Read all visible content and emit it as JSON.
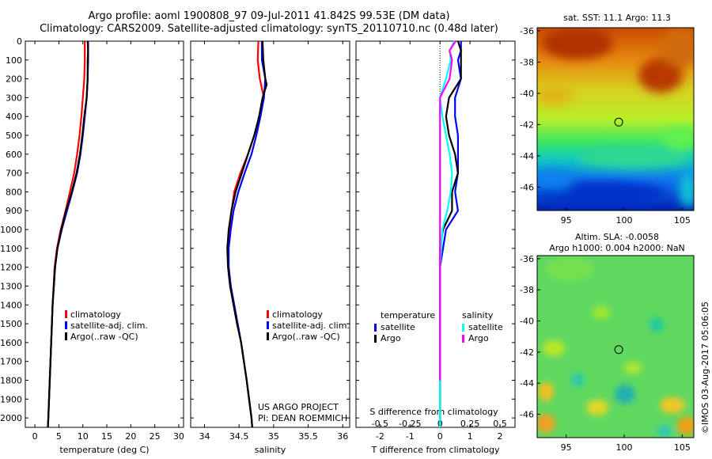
{
  "header": {
    "line1": "Argo profile: aoml 1900808_97 09-Jul-2011 41.842S 99.53E (DM data)",
    "line2": "Climatology: CARS2009. Satellite-adjusted climatology: synTS_20110710.nc (0.48d later)"
  },
  "footer": {
    "project": "US ARGO PROJECT",
    "pi": "PI: DEAN ROEMMICH"
  },
  "stamp": "©IMOS 03-Aug-2017 05:06:05",
  "colors": {
    "climatology": "#ff0000",
    "satellite": "#0000ff",
    "argo": "#000000",
    "sal_satellite": "#00ffff",
    "sal_argo": "#ff00ff"
  },
  "chart_data": [
    {
      "type": "line",
      "id": "temperature",
      "xlabel": "temperature (deg C)",
      "ylabel": "",
      "xlim": [
        -2,
        31
      ],
      "ylim": [
        2050,
        0
      ],
      "xticks": [
        "0",
        "5",
        "10",
        "15",
        "20",
        "25",
        "30"
      ],
      "yticks": [
        "0",
        "100",
        "200",
        "300",
        "400",
        "500",
        "600",
        "700",
        "800",
        "900",
        "1000",
        "1100",
        "1200",
        "1300",
        "1400",
        "1500",
        "1600",
        "1700",
        "1800",
        "1900",
        "2000"
      ],
      "legend": [
        "climatology",
        "satellite-adj. clim.",
        "Argo(..raw -QC)"
      ],
      "series": [
        {
          "name": "climatology",
          "color": "#ff0000",
          "depth": [
            0,
            100,
            200,
            300,
            400,
            500,
            600,
            700,
            800,
            900,
            1000,
            1100,
            1200,
            1400,
            1600,
            1800,
            2000,
            2050
          ],
          "values": [
            10.4,
            10.4,
            10.3,
            10.0,
            9.7,
            9.3,
            8.8,
            8.2,
            7.3,
            6.4,
            5.4,
            4.6,
            4.1,
            3.7,
            3.4,
            3.1,
            2.8,
            2.7
          ]
        },
        {
          "name": "satellite-adj. clim.",
          "color": "#0000ff",
          "depth": [
            0,
            100,
            200,
            300,
            400,
            500,
            600,
            700,
            800,
            900,
            1000,
            1100,
            1200,
            1400,
            1600,
            1800,
            2000,
            2050
          ],
          "values": [
            11.1,
            11.1,
            11.0,
            10.8,
            10.4,
            10.0,
            9.5,
            8.8,
            7.8,
            6.7,
            5.6,
            4.7,
            4.2,
            3.7,
            3.4,
            3.1,
            2.8,
            2.7
          ]
        },
        {
          "name": "Argo(..raw -QC)",
          "color": "#000000",
          "depth": [
            0,
            50,
            100,
            200,
            300,
            400,
            500,
            600,
            700,
            800,
            900,
            1000,
            1100,
            1200,
            1400,
            1600,
            1800,
            2000,
            2050
          ],
          "values": [
            11.0,
            11.1,
            11.0,
            11.0,
            10.8,
            10.3,
            9.9,
            9.4,
            8.7,
            7.7,
            6.5,
            5.5,
            4.7,
            4.2,
            3.7,
            3.4,
            3.1,
            2.8,
            2.7
          ]
        }
      ]
    },
    {
      "type": "line",
      "id": "salinity",
      "xlabel": "salinity",
      "ylabel": "",
      "xlim": [
        33.8,
        36.1
      ],
      "ylim": [
        2050,
        0
      ],
      "xticks": [
        "34",
        "34.5",
        "35",
        "35.5",
        "36"
      ],
      "legend": [
        "climatology",
        "satellite-adj. clim.",
        "Argo(..raw -QC)"
      ],
      "series": [
        {
          "name": "climatology",
          "color": "#ff0000",
          "depth": [
            0,
            100,
            200,
            300,
            400,
            500,
            600,
            700,
            800,
            900,
            1000,
            1100,
            1200,
            1300,
            1400,
            1500,
            1600,
            1800,
            2000,
            2050
          ],
          "values": [
            34.78,
            34.77,
            34.8,
            34.86,
            34.8,
            34.72,
            34.63,
            34.52,
            34.43,
            34.39,
            34.36,
            34.34,
            34.35,
            34.38,
            34.43,
            34.48,
            34.53,
            34.61,
            34.68,
            34.69
          ]
        },
        {
          "name": "satellite-adj. clim.",
          "color": "#0000ff",
          "depth": [
            0,
            100,
            200,
            300,
            400,
            500,
            600,
            700,
            800,
            900,
            1000,
            1100,
            1200,
            1300,
            1400,
            1500,
            1600,
            1800,
            2000,
            2050
          ],
          "values": [
            34.83,
            34.83,
            34.88,
            34.86,
            34.81,
            34.75,
            34.68,
            34.58,
            34.49,
            34.42,
            34.38,
            34.35,
            34.35,
            34.38,
            34.43,
            34.48,
            34.53,
            34.61,
            34.68,
            34.69
          ]
        },
        {
          "name": "Argo(..raw -QC)",
          "color": "#000000",
          "depth": [
            0,
            100,
            200,
            230,
            300,
            400,
            500,
            600,
            700,
            800,
            900,
            1000,
            1100,
            1200,
            1300,
            1400,
            1500,
            1600,
            1800,
            2000,
            2050
          ],
          "values": [
            34.84,
            34.85,
            34.88,
            34.9,
            34.84,
            34.79,
            34.72,
            34.63,
            34.54,
            34.45,
            34.39,
            34.35,
            34.33,
            34.34,
            34.37,
            34.42,
            34.47,
            34.53,
            34.61,
            34.68,
            34.69
          ]
        }
      ]
    },
    {
      "type": "line",
      "id": "differences",
      "xlabel": "T difference from climatology",
      "ylabel": "",
      "second_xlabel": "S difference from climatology",
      "xlim": [
        -2.8,
        2.5
      ],
      "ylim": [
        2050,
        0
      ],
      "xticks": [
        "-2",
        "-1",
        "0",
        "1",
        "2"
      ],
      "second_xticks": [
        "-0.5",
        "-0.25",
        "0",
        "0.25",
        "0.5"
      ],
      "legend_groups": [
        {
          "title": "temperature",
          "items": [
            "satellite",
            "Argo"
          ]
        },
        {
          "title": "salinity",
          "items": [
            "satellite",
            "Argo"
          ]
        }
      ],
      "series": [
        {
          "name": "satellite",
          "group": "temperature",
          "color": "#0000ff",
          "depth": [
            0,
            50,
            100,
            200,
            300,
            400,
            500,
            600,
            700,
            800,
            900,
            1000,
            1100,
            1200,
            1400,
            1600,
            1800,
            2000,
            2050
          ],
          "values": [
            0.7,
            0.7,
            0.6,
            0.7,
            0.5,
            0.5,
            0.6,
            0.6,
            0.6,
            0.5,
            0.6,
            0.2,
            0.1,
            0.0,
            0.0,
            0.0,
            0.0,
            0.0,
            0.0
          ]
        },
        {
          "name": "Argo",
          "group": "temperature",
          "color": "#000000",
          "depth": [
            0,
            50,
            100,
            200,
            300,
            400,
            500,
            600,
            700,
            800,
            900,
            1000,
            1100,
            1200,
            1400,
            1600,
            1800,
            2000,
            2050
          ],
          "values": [
            0.6,
            0.7,
            0.7,
            0.7,
            0.3,
            0.2,
            0.3,
            0.5,
            0.6,
            0.4,
            0.4,
            0.1,
            0.0,
            0.0,
            0.0,
            0.0,
            0.0,
            0.0,
            0.0
          ]
        },
        {
          "name": "satellite",
          "group": "salinity",
          "color": "#00ffff",
          "depth": [
            0,
            50,
            100,
            200,
            300,
            400,
            500,
            600,
            700,
            800,
            900,
            1000,
            1100,
            1200,
            1400,
            1600,
            1800,
            2000,
            2050
          ],
          "values": [
            0.12,
            0.08,
            0.09,
            0.05,
            0.0,
            0.02,
            0.05,
            0.08,
            0.1,
            0.09,
            0.06,
            0.02,
            0.01,
            0.0,
            0.0,
            0.0,
            0.0,
            0.0,
            0.0
          ]
        },
        {
          "name": "Argo",
          "group": "salinity",
          "color": "#ff00ff",
          "depth": [
            0,
            50,
            100,
            200,
            300,
            400,
            500,
            600,
            700,
            800,
            900,
            1000,
            1100,
            1200,
            1400,
            1600,
            1800
          ],
          "values": [
            0.13,
            0.08,
            0.1,
            0.08,
            0.0,
            0.0,
            0.0,
            0.0,
            0.0,
            0.0,
            0.0,
            0.0,
            0.0,
            0.0,
            0.0,
            0.0,
            0.0
          ]
        }
      ]
    },
    {
      "type": "heatmap",
      "id": "sst_map",
      "title": "sat. SST: 11.1  Argo: 11.3",
      "xlim": [
        92.5,
        106
      ],
      "ylim": [
        -47.5,
        -35.8
      ],
      "xticks": [
        "95",
        "100",
        "105"
      ],
      "yticks": [
        "-36",
        "-38",
        "-40",
        "-42",
        "-44",
        "-46"
      ],
      "marker": {
        "lon": 99.53,
        "lat": -41.842
      }
    },
    {
      "type": "heatmap",
      "id": "sla_map",
      "title": "Altim. SLA: -0.0058",
      "subtitle": "Argo h1000: 0.004  h2000: NaN",
      "xlim": [
        92.5,
        106
      ],
      "ylim": [
        -47.5,
        -35.8
      ],
      "xticks": [
        "95",
        "100",
        "105"
      ],
      "yticks": [
        "-36",
        "-38",
        "-40",
        "-42",
        "-44",
        "-46"
      ],
      "marker": {
        "lon": 99.53,
        "lat": -41.842
      }
    }
  ]
}
